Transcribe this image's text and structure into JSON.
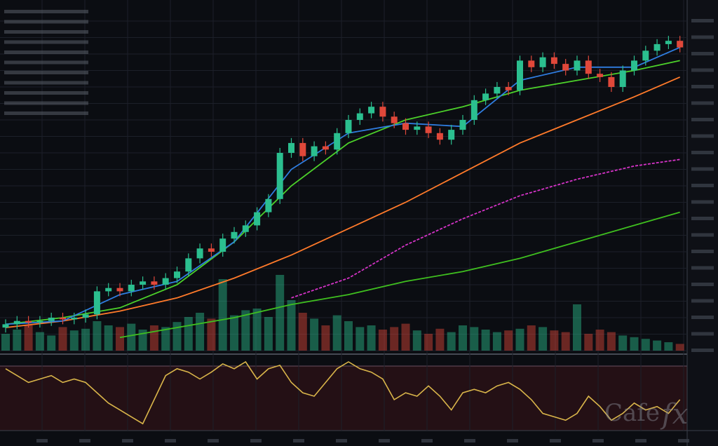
{
  "chart_data": {
    "type": "candlestick",
    "up_color": "#2bbf8f",
    "down_color": "#e0483a",
    "ylim": [
      0,
      100
    ],
    "yticks": [
      0,
      5,
      10,
      15,
      20,
      25,
      30,
      35,
      40,
      45,
      50,
      55,
      60,
      65,
      70,
      75,
      80,
      85,
      90,
      95,
      100
    ],
    "grid": true,
    "open": [
      7,
      8,
      9,
      8.5,
      9,
      10,
      9.5,
      10,
      11,
      18,
      19,
      18,
      20,
      21,
      20,
      22,
      24,
      28,
      31,
      30,
      34,
      36,
      38,
      42,
      46,
      60,
      63,
      59,
      62,
      61,
      66,
      70,
      72,
      74,
      71,
      69,
      67,
      68,
      66,
      64,
      67,
      70,
      76,
      78,
      80,
      79,
      88,
      86,
      89,
      87,
      85,
      88,
      84,
      83,
      80,
      85,
      88,
      91,
      93,
      94
    ],
    "high": [
      9.5,
      10.5,
      10.5,
      10.5,
      11.5,
      11.5,
      11.5,
      12.5,
      19.5,
      20.5,
      20.5,
      21.5,
      22.5,
      22.5,
      23.5,
      25.5,
      29.5,
      32.5,
      32.5,
      35.5,
      37.5,
      39.5,
      43.5,
      47.5,
      61.5,
      64.5,
      64.5,
      63.5,
      63.5,
      67.5,
      71.5,
      73.5,
      75.5,
      75.5,
      72.5,
      70.5,
      69.5,
      69.5,
      67.5,
      68.5,
      71.5,
      77.5,
      79.5,
      81.5,
      81.5,
      89.5,
      89.5,
      90.5,
      90.5,
      88.5,
      89.5,
      89.5,
      85.5,
      84.5,
      86.5,
      89.5,
      92.5,
      94.5,
      95.5,
      95.5
    ],
    "low": [
      5.5,
      6.5,
      7,
      7,
      7.5,
      8,
      8,
      8.5,
      9.5,
      16.5,
      16.5,
      16.5,
      18.5,
      18.5,
      18.5,
      20.5,
      22.5,
      26.5,
      28.5,
      28.5,
      32.5,
      34.5,
      36.5,
      40.5,
      44.5,
      58.5,
      57.5,
      57.5,
      59.5,
      59.5,
      64.5,
      68.5,
      70.5,
      69.5,
      67.5,
      65.5,
      65.5,
      64.5,
      62.5,
      62.5,
      65.5,
      68.5,
      74.5,
      76.5,
      77.5,
      77.5,
      84.5,
      84.5,
      85.5,
      83.5,
      83.5,
      82.5,
      81.5,
      78.5,
      78.5,
      83.5,
      86.5,
      89.5,
      91.5,
      90.5
    ],
    "close": [
      8,
      9,
      8.5,
      9,
      10,
      9.5,
      10,
      11,
      18,
      19,
      18,
      20,
      21,
      20,
      22,
      24,
      28,
      31,
      30,
      34,
      36,
      38,
      42,
      46,
      60,
      63,
      59,
      62,
      61,
      66,
      70,
      72,
      74,
      71,
      69,
      67,
      68,
      66,
      64,
      67,
      70,
      76,
      78,
      80,
      79,
      88,
      86,
      89,
      87,
      85,
      88,
      84,
      83,
      80,
      85,
      88,
      91,
      93,
      94,
      92
    ],
    "volume_ylim": [
      0,
      100
    ],
    "volume": [
      20,
      25,
      30,
      22,
      18,
      28,
      24,
      26,
      35,
      30,
      28,
      32,
      25,
      30,
      28,
      34,
      40,
      45,
      38,
      85,
      42,
      48,
      50,
      40,
      90,
      60,
      45,
      38,
      30,
      42,
      35,
      28,
      30,
      25,
      28,
      32,
      24,
      20,
      26,
      22,
      30,
      28,
      25,
      22,
      24,
      26,
      30,
      28,
      24,
      22,
      55,
      20,
      25,
      22,
      18,
      16,
      14,
      12,
      10,
      8
    ],
    "moving_averages": {
      "x": [
        0,
        5,
        10,
        15,
        20,
        25,
        30,
        35,
        40,
        45,
        50,
        55,
        59
      ],
      "series": [
        {
          "color": "#ff7a2a",
          "values": [
            7,
            9,
            12,
            16,
            22,
            29,
            37,
            45,
            54,
            63,
            70,
            77,
            83
          ]
        },
        {
          "color": "#4cd12a",
          "values": [
            8,
            10,
            13,
            20,
            33,
            50,
            63,
            70,
            74,
            79,
            82,
            85,
            88
          ]
        },
        {
          "color": "#2f7de0",
          "values": [
            8,
            9,
            17,
            21,
            33,
            55,
            66,
            69,
            68,
            82,
            86,
            86,
            92
          ]
        },
        {
          "color": "#d633c8",
          "values": [
            null,
            null,
            null,
            null,
            null,
            16,
            22,
            32,
            40,
            47,
            52,
            56,
            58
          ]
        },
        {
          "color": "#3fbf1f",
          "values": [
            null,
            null,
            4,
            7,
            10,
            14,
            17,
            21,
            24,
            28,
            33,
            38,
            42
          ]
        }
      ]
    },
    "oscillator": {
      "color": "#d9b54a",
      "ylim": [
        0,
        100
      ],
      "values": [
        90,
        80,
        70,
        75,
        80,
        70,
        75,
        70,
        55,
        40,
        30,
        20,
        10,
        45,
        80,
        90,
        85,
        75,
        85,
        97,
        90,
        100,
        75,
        90,
        95,
        70,
        55,
        50,
        70,
        90,
        100,
        90,
        85,
        75,
        45,
        55,
        50,
        65,
        50,
        30,
        55,
        60,
        55,
        65,
        70,
        60,
        45,
        25,
        20,
        15,
        25,
        50,
        35,
        15,
        25,
        40,
        30,
        35,
        25,
        45
      ]
    },
    "watermark": [
      "Cafe",
      "fx"
    ]
  }
}
